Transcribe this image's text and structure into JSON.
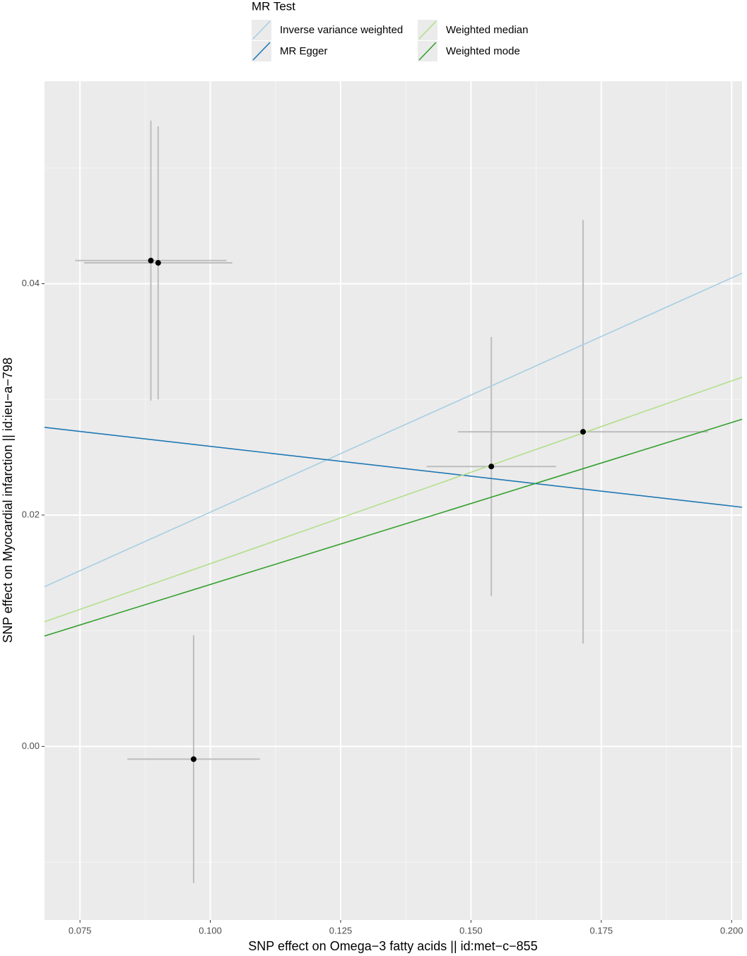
{
  "chart_data": {
    "type": "scatter",
    "x_label": "SNP effect on Omega−3 fatty acids || id:met−c−855",
    "y_label": "SNP effect on Myocardial infarction || id:ieu−a−798",
    "legend_title": "MR Test",
    "legend_position": "top",
    "grid": true,
    "point_color": "#000000",
    "errorbar_color": "#bdbdbd",
    "x": [
      0.0886,
      0.09,
      0.0968,
      0.1539,
      0.1715
    ],
    "y": [
      0.042,
      0.0418,
      -0.0011,
      0.0242,
      0.0272
    ],
    "xerr": [
      0.0145,
      0.0142,
      0.0127,
      0.0124,
      0.024
    ],
    "yerr": [
      0.0121,
      0.0118,
      0.0107,
      0.0112,
      0.0183
    ],
    "series": [
      {
        "name": "Inverse variance weighted",
        "color": "#a6cee3",
        "slope": 0.2025,
        "intercept": 0.0
      },
      {
        "name": "MR Egger",
        "color": "#1f78b4",
        "slope": -0.0516,
        "intercept": 0.0311
      },
      {
        "name": "Weighted median",
        "color": "#b2df8a",
        "slope": 0.158,
        "intercept": 0.0
      },
      {
        "name": "Weighted mode",
        "color": "#33a02c",
        "slope": 0.14,
        "intercept": 0.0
      }
    ],
    "xlim": [
      0.0682,
      0.202
    ],
    "ylim": [
      -0.015,
      0.0575
    ],
    "xticks": [
      0.075,
      {
        "value": 0.1,
        "label": "0.100"
      },
      0.125,
      {
        "value": 0.15,
        "label": "0.150"
      },
      0.175,
      {
        "value": 0.2,
        "label": "0.200"
      }
    ],
    "yticks": [
      {
        "value": 0,
        "label": "0.00"
      },
      {
        "value": 0.02,
        "label": "0.02"
      },
      {
        "value": 0.04,
        "label": "0.04"
      }
    ]
  }
}
